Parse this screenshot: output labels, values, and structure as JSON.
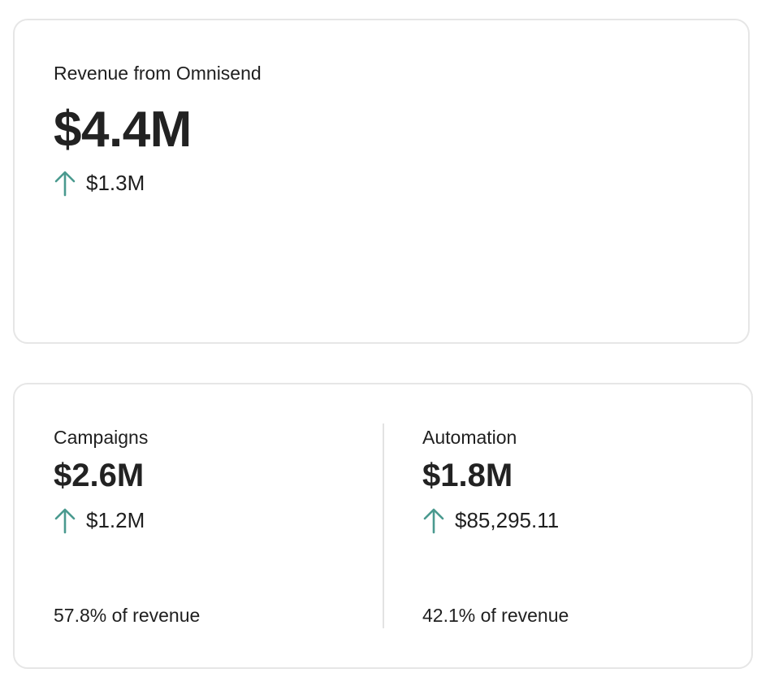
{
  "total": {
    "label": "Revenue from Omnisend",
    "value": "$4.4M",
    "change": "$1.3M",
    "change_direction": "up"
  },
  "channels": [
    {
      "label": "Campaigns",
      "value": "$2.6M",
      "change": "$1.2M",
      "change_direction": "up",
      "share_value": "57.8%",
      "share_suffix": " of revenue"
    },
    {
      "label": "Automation",
      "value": "$1.8M",
      "change": "$85,295.11",
      "change_direction": "up",
      "share_value": "42.1%",
      "share_suffix": " of revenue"
    }
  ],
  "colors": {
    "arrow_up": "#4a9a8f",
    "border": "#e6e6e6",
    "text": "#222222"
  },
  "icons": {
    "change": "arrow-up-icon"
  }
}
